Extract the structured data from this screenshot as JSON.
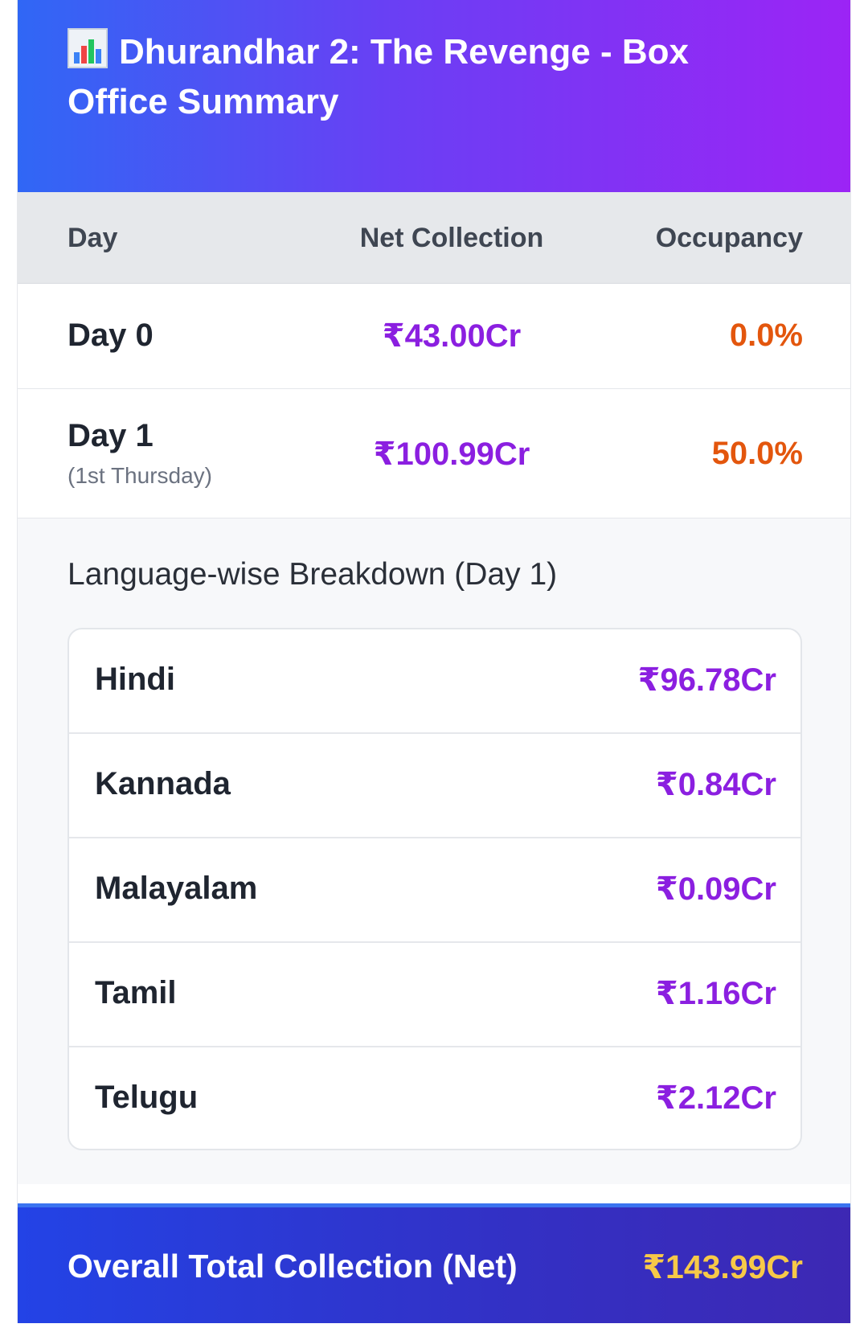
{
  "header": {
    "icon": "bar-chart-icon",
    "title": "Dhurandhar 2: The Revenge - Box Office Summary",
    "gradient_colors": [
      "#3067f5",
      "#9c24f5"
    ]
  },
  "table": {
    "columns": [
      "Day",
      "Net Collection",
      "Occupancy"
    ],
    "rows": [
      {
        "day": "Day 0",
        "subtitle": "",
        "net": "₹43.00Cr",
        "occupancy": "0.0%"
      },
      {
        "day": "Day 1",
        "subtitle": "(1st Thursday)",
        "net": "₹100.99Cr",
        "occupancy": "50.0%"
      }
    ]
  },
  "breakdown": {
    "title": "Language-wise Breakdown (Day 1)",
    "items": [
      {
        "language": "Hindi",
        "value": "₹96.78Cr"
      },
      {
        "language": "Kannada",
        "value": "₹0.84Cr"
      },
      {
        "language": "Malayalam",
        "value": "₹0.09Cr"
      },
      {
        "language": "Tamil",
        "value": "₹1.16Cr"
      },
      {
        "language": "Telugu",
        "value": "₹2.12Cr"
      }
    ]
  },
  "total": {
    "label": "Overall Total Collection (Net)",
    "value": "₹143.99Cr"
  },
  "colors": {
    "net_value": "#8b1fe0",
    "occupancy_value": "#e3560d",
    "total_value": "#f7c948"
  }
}
